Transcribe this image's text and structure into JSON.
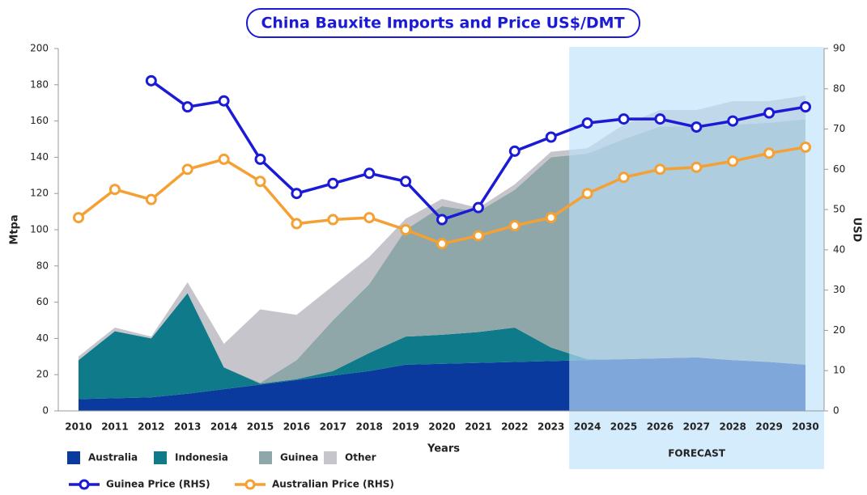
{
  "chart_data": {
    "type": "area",
    "title": "China Bauxite Imports and Price US$/DMT",
    "x_label": "Years",
    "y_label": "Mtpa",
    "y2_label": "USD",
    "categories": [
      "2010",
      "2011",
      "2012",
      "2013",
      "2014",
      "2015",
      "2016",
      "2017",
      "2018",
      "2019",
      "2020",
      "2021",
      "2022",
      "2023",
      "2024",
      "2025",
      "2026",
      "2027",
      "2028",
      "2029",
      "2030"
    ],
    "ylim": [
      0,
      200
    ],
    "yticks": [
      0,
      20,
      40,
      60,
      80,
      100,
      120,
      140,
      160,
      180,
      200
    ],
    "y2lim": [
      0,
      90
    ],
    "y2ticks": [
      0,
      10,
      20,
      30,
      40,
      50,
      60,
      70,
      80,
      90
    ],
    "forecast": {
      "label": "FORECAST",
      "from": "2024"
    },
    "series": [
      {
        "name": "Australia",
        "type": "area",
        "color": "#0b3a9e",
        "values": [
          6.5,
          7,
          7.5,
          9.5,
          12,
          14.5,
          17,
          19.5,
          22,
          25.5,
          26,
          26.5,
          27,
          27.5,
          28,
          28.5,
          29,
          29.5,
          28,
          27,
          25.5
        ]
      },
      {
        "name": "Indonesia",
        "type": "area",
        "color": "#0e7a8a",
        "values": [
          21.5,
          37,
          32.5,
          55.5,
          12,
          0.5,
          0.5,
          2.5,
          10,
          15.5,
          16,
          17,
          19,
          7.5,
          0.5,
          0,
          0,
          0,
          0,
          0,
          0
        ]
      },
      {
        "name": "Guinea",
        "type": "area",
        "color": "#8fa7a8",
        "values": [
          0,
          0,
          0,
          0,
          0,
          0.5,
          10.5,
          28,
          38,
          59,
          71,
          66.5,
          76,
          105,
          113.5,
          121.5,
          128,
          127.5,
          130,
          132,
          135.5
        ]
      },
      {
        "name": "Other",
        "type": "area",
        "color": "#c5c5cb",
        "values": [
          2,
          2,
          1,
          6,
          13,
          40.5,
          25,
          19,
          15,
          6,
          4,
          2,
          3,
          3,
          3,
          8,
          9,
          9,
          13,
          12,
          13
        ]
      },
      {
        "name": "Guinea Price (RHS)",
        "type": "line",
        "axis": "y2",
        "color": "#1b1bd6",
        "values": [
          null,
          null,
          82,
          75.5,
          77,
          62.5,
          54,
          56.5,
          59,
          57,
          47.5,
          50.5,
          64.5,
          68,
          71.5,
          72.5,
          72.5,
          70.5,
          72,
          74,
          75.5
        ]
      },
      {
        "name": "Australian Price (RHS)",
        "type": "line",
        "axis": "y2",
        "color": "#f5a033",
        "values": [
          48,
          55,
          52.5,
          60,
          62.5,
          57,
          46.5,
          47.5,
          48,
          45,
          41.5,
          43.5,
          46,
          48,
          54,
          58,
          60,
          60.5,
          62,
          64,
          65.5
        ]
      }
    ]
  }
}
